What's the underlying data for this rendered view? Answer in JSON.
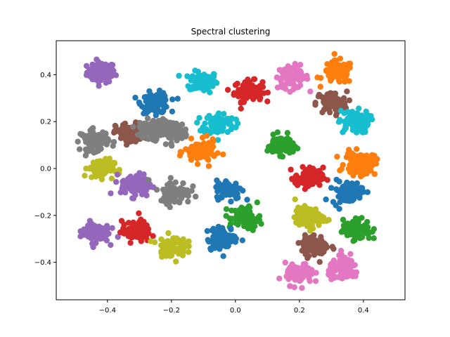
{
  "chart_data": {
    "type": "scatter",
    "title": "Spectral clustering",
    "xlabel": "",
    "ylabel": "",
    "xlim": [
      -0.56,
      0.53
    ],
    "ylim": [
      -0.56,
      0.545
    ],
    "xticks": [
      -0.4,
      -0.2,
      0.0,
      0.2,
      0.4
    ],
    "yticks": [
      -0.4,
      -0.2,
      0.0,
      0.2,
      0.4
    ],
    "xtick_labels": [
      "−0.4",
      "−0.2",
      "0.0",
      "0.2",
      "0.4"
    ],
    "ytick_labels": [
      "−0.4",
      "−0.2",
      "0.0",
      "0.2",
      "0.4"
    ],
    "grid": false,
    "legend": false,
    "clusters": [
      {
        "cx": -0.42,
        "cy": 0.41,
        "spread": 0.022,
        "color": "#9467bd"
      },
      {
        "cx": -0.1,
        "cy": 0.37,
        "spread": 0.022,
        "color": "#17becf"
      },
      {
        "cx": 0.04,
        "cy": 0.33,
        "spread": 0.022,
        "color": "#d62728"
      },
      {
        "cx": 0.18,
        "cy": 0.39,
        "spread": 0.024,
        "color": "#e377c2"
      },
      {
        "cx": 0.32,
        "cy": 0.41,
        "spread": 0.024,
        "color": "#ff7f0e"
      },
      {
        "cx": -0.25,
        "cy": 0.28,
        "spread": 0.022,
        "color": "#1f77b4"
      },
      {
        "cx": 0.3,
        "cy": 0.28,
        "spread": 0.024,
        "color": "#8c564b"
      },
      {
        "cx": -0.05,
        "cy": 0.19,
        "spread": 0.024,
        "color": "#17becf"
      },
      {
        "cx": 0.37,
        "cy": 0.2,
        "spread": 0.024,
        "color": "#17becf"
      },
      {
        "cx": -0.33,
        "cy": 0.15,
        "spread": 0.022,
        "color": "#8c564b"
      },
      {
        "cx": -0.26,
        "cy": 0.17,
        "spread": 0.02,
        "color": "#7f7f7f"
      },
      {
        "cx": -0.19,
        "cy": 0.16,
        "spread": 0.02,
        "color": "#7f7f7f"
      },
      {
        "cx": -0.44,
        "cy": 0.12,
        "spread": 0.022,
        "color": "#7f7f7f"
      },
      {
        "cx": 0.14,
        "cy": 0.1,
        "spread": 0.02,
        "color": "#2ca02c"
      },
      {
        "cx": -0.11,
        "cy": 0.07,
        "spread": 0.024,
        "color": "#ff7f0e"
      },
      {
        "cx": 0.39,
        "cy": 0.02,
        "spread": 0.024,
        "color": "#ff7f0e"
      },
      {
        "cx": -0.42,
        "cy": 0.0,
        "spread": 0.02,
        "color": "#bcbd22"
      },
      {
        "cx": 0.23,
        "cy": -0.04,
        "spread": 0.022,
        "color": "#d62728"
      },
      {
        "cx": -0.31,
        "cy": -0.07,
        "spread": 0.024,
        "color": "#9467bd"
      },
      {
        "cx": -0.02,
        "cy": -0.09,
        "spread": 0.02,
        "color": "#1f77b4"
      },
      {
        "cx": -0.19,
        "cy": -0.1,
        "spread": 0.024,
        "color": "#7f7f7f"
      },
      {
        "cx": 0.35,
        "cy": -0.1,
        "spread": 0.024,
        "color": "#1f77b4"
      },
      {
        "cx": 0.03,
        "cy": -0.21,
        "spread": 0.024,
        "color": "#2ca02c"
      },
      {
        "cx": 0.23,
        "cy": -0.21,
        "spread": 0.022,
        "color": "#bcbd22"
      },
      {
        "cx": -0.44,
        "cy": -0.27,
        "spread": 0.022,
        "color": "#9467bd"
      },
      {
        "cx": -0.31,
        "cy": -0.27,
        "spread": 0.022,
        "color": "#d62728"
      },
      {
        "cx": 0.38,
        "cy": -0.26,
        "spread": 0.022,
        "color": "#2ca02c"
      },
      {
        "cx": -0.04,
        "cy": -0.3,
        "spread": 0.024,
        "color": "#1f77b4"
      },
      {
        "cx": -0.2,
        "cy": -0.33,
        "spread": 0.022,
        "color": "#bcbd22"
      },
      {
        "cx": 0.25,
        "cy": -0.33,
        "spread": 0.022,
        "color": "#8c564b"
      },
      {
        "cx": 0.2,
        "cy": -0.45,
        "spread": 0.022,
        "color": "#e377c2"
      },
      {
        "cx": 0.34,
        "cy": -0.43,
        "spread": 0.024,
        "color": "#e377c2"
      }
    ]
  }
}
